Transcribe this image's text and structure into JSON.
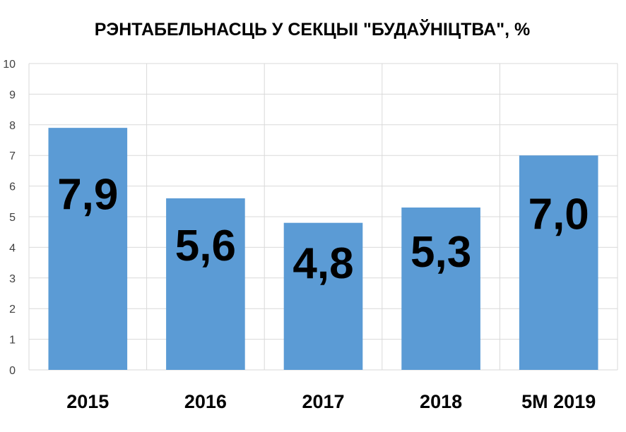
{
  "chart_data": {
    "type": "bar",
    "title": "РЭНТАБЕЛЬНАСЦЬ У СЕКЦЫІ \"БУДАЎНІЦТВА\", %",
    "xlabel": "",
    "ylabel": "",
    "categories": [
      "2015",
      "2016",
      "2017",
      "2018",
      "5М 2019"
    ],
    "values": [
      7.9,
      5.6,
      4.8,
      5.3,
      7.0
    ],
    "data_labels": [
      "7,9",
      "5,6",
      "4,8",
      "5,3",
      "7,0"
    ],
    "ylim": [
      0,
      10
    ],
    "yticks": [
      "0",
      "1",
      "2",
      "3",
      "4",
      "5",
      "6",
      "7",
      "8",
      "9",
      "10"
    ],
    "grid": true,
    "legend": "none",
    "bar_color": "#5b9bd5",
    "grid_color": "#d9d9d9"
  }
}
